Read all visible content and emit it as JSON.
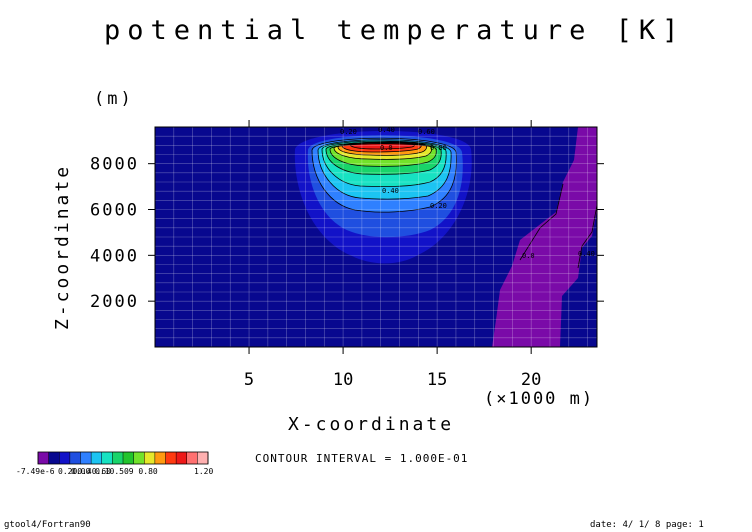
{
  "chart_data": {
    "type": "contour",
    "title": "potential temperature [K]",
    "xlabel": "X-coordinate",
    "ylabel": "Z-coordinate",
    "x_unit": "(×1000 m)",
    "y_unit": "(m)",
    "xlim": [
      0,
      23.5
    ],
    "ylim": [
      0,
      9600
    ],
    "x_ticks": [
      5,
      10,
      15,
      20
    ],
    "y_ticks": [
      2000,
      4000,
      6000,
      8000
    ],
    "grid": true,
    "contour_interval_text": "CONTOUR INTERVAL = 1.000E-01",
    "contour_labels": [
      "0.20",
      "0.40",
      "0.60",
      "0.80",
      "0.40",
      "0.20",
      "0.40",
      "0.0",
      "0.0"
    ],
    "colorbar": {
      "min_label": "-7.49e-6",
      "mid_labels": "0.200.40.60",
      "overlap_labels": "0.00 0.10.509 0.80",
      "max_label": "1.20",
      "colors": [
        "#7a0aa8",
        "#08088f",
        "#1212c8",
        "#1f4fe0",
        "#2f80ff",
        "#1cc4f2",
        "#17e2c2",
        "#19d46a",
        "#22c42d",
        "#72e22b",
        "#e6e82b",
        "#ff9a10",
        "#ff3a10",
        "#ee1818",
        "#ff7070",
        "#ffb0b0"
      ]
    }
  },
  "footer": {
    "left": "gtool4/Fortran90",
    "right": "date: 4/ 1/ 8 page: 1"
  },
  "colors": {
    "background_level": "#08088f",
    "purple_plume": "#7a0aa8"
  }
}
